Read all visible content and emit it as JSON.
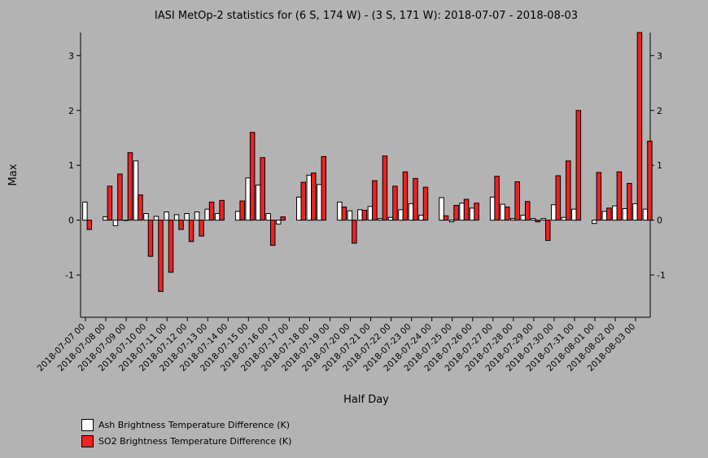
{
  "chart_data": {
    "type": "bar",
    "title": "IASI MetOp-2 statistics for (6 S, 174 W) - (3 S, 171 W): 2018-07-07 - 2018-08-03",
    "xlabel": "Half Day",
    "ylabel": "Max",
    "ylim": [
      -1.77,
      3.42
    ],
    "yticks": [
      -1,
      0,
      1,
      2,
      3
    ],
    "grid": false,
    "legend_position": "bottom-left",
    "date_labels": [
      "2018-07-07 00",
      "2018-07-08 00",
      "2018-07-09 00",
      "2018-07-10 00",
      "2018-07-11 00",
      "2018-07-12 00",
      "2018-07-13 00",
      "2018-07-14 00",
      "2018-07-15 00",
      "2018-07-16 00",
      "2018-07-17 00",
      "2018-07-18 00",
      "2018-07-19 00",
      "2018-07-20 00",
      "2018-07-21 00",
      "2018-07-22 00",
      "2018-07-23 00",
      "2018-07-24 00",
      "2018-07-25 00",
      "2018-07-26 00",
      "2018-07-27 00",
      "2018-07-28 00",
      "2018-07-29 00",
      "2018-07-30 00",
      "2018-07-31 00",
      "2018-08-01 00",
      "2018-08-02 00",
      "2018-08-03 00"
    ],
    "series": [
      {
        "name": "Ash Brightness Temperature Difference (K)",
        "color": "#ffffff",
        "values": [
          0.33,
          null,
          0.06,
          -0.1,
          0.0,
          1.08,
          0.12,
          0.07,
          0.15,
          0.1,
          0.12,
          0.15,
          0.2,
          0.12,
          null,
          0.16,
          0.77,
          0.64,
          0.12,
          -0.07,
          null,
          0.42,
          0.82,
          0.65,
          null,
          0.33,
          0.17,
          0.19,
          0.25,
          0.03,
          0.05,
          0.19,
          0.3,
          0.09,
          null,
          0.41,
          -0.03,
          0.31,
          0.22,
          null,
          0.42,
          0.29,
          0.03,
          0.09,
          0.03,
          0.03,
          0.28,
          0.05,
          0.2,
          null,
          -0.06,
          0.16,
          0.26,
          0.21,
          0.3,
          0.2
        ]
      },
      {
        "name": "SO2 Brightness Temperature Difference (K)",
        "color": "#ee2222",
        "values": [
          -0.17,
          null,
          0.62,
          0.84,
          1.23,
          0.46,
          -0.66,
          -1.3,
          -0.95,
          -0.17,
          -0.39,
          -0.29,
          0.33,
          0.36,
          null,
          0.35,
          1.6,
          1.14,
          -0.46,
          0.06,
          null,
          0.69,
          0.86,
          1.16,
          null,
          0.24,
          -0.42,
          0.18,
          0.72,
          1.17,
          0.62,
          0.88,
          0.76,
          0.6,
          null,
          0.08,
          0.27,
          0.38,
          0.31,
          null,
          0.8,
          0.24,
          0.7,
          0.34,
          -0.03,
          -0.37,
          0.81,
          1.08,
          2.0,
          null,
          0.87,
          0.22,
          0.88,
          0.67,
          3.42,
          1.44
        ]
      }
    ]
  }
}
